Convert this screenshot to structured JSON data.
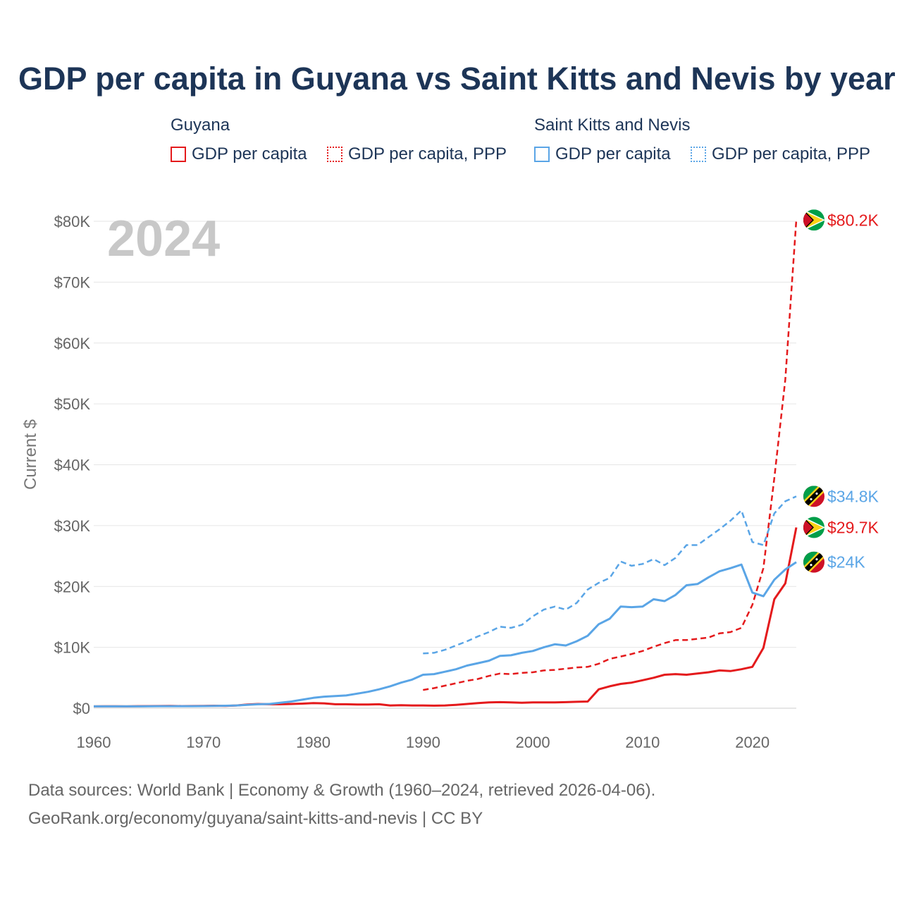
{
  "title": "GDP per capita in Guyana vs Saint Kitts and Nevis by year",
  "legend": {
    "groups": [
      {
        "country": "Guyana",
        "color": "#e41a1c",
        "items": [
          {
            "label": "GDP per capita",
            "style": "solid"
          },
          {
            "label": "GDP per capita, PPP",
            "style": "dashed"
          }
        ]
      },
      {
        "country": "Saint Kitts and Nevis",
        "color": "#5aa5e6",
        "items": [
          {
            "label": "GDP per capita",
            "style": "solid"
          },
          {
            "label": "GDP per capita, PPP",
            "style": "dashed"
          }
        ]
      }
    ]
  },
  "footer": {
    "line1": "Data sources: World Bank | Economy & Growth (1960–2024, retrieved 2026-04-06).",
    "line2": "GeoRank.org/economy/guyana/saint-kitts-and-nevis | CC BY"
  },
  "chart_data": {
    "type": "line",
    "title": "GDP per capita in Guyana vs Saint Kitts and Nevis by year",
    "year_label": "2024",
    "xlabel": "",
    "ylabel": "Current $",
    "xlim": [
      1960,
      2024
    ],
    "ylim": [
      0,
      80000
    ],
    "x_ticks": [
      "1960",
      "1970",
      "1980",
      "1990",
      "2000",
      "2010",
      "2020"
    ],
    "y_ticks": [
      "$0",
      "$10K",
      "$20K",
      "$30K",
      "$40K",
      "$50K",
      "$60K",
      "$70K",
      "$80K"
    ],
    "grid": true,
    "series": [
      {
        "name": "Guyana GDP per capita",
        "country": "Guyana",
        "color": "#e41a1c",
        "dashed": false,
        "end_label": "$29.7K",
        "x": [
          1960,
          1961,
          1962,
          1963,
          1964,
          1965,
          1966,
          1967,
          1968,
          1969,
          1970,
          1971,
          1972,
          1973,
          1974,
          1975,
          1976,
          1977,
          1978,
          1979,
          1980,
          1981,
          1982,
          1983,
          1984,
          1985,
          1986,
          1987,
          1988,
          1989,
          1990,
          1991,
          1992,
          1993,
          1994,
          1995,
          1996,
          1997,
          1998,
          1999,
          2000,
          2001,
          2002,
          2003,
          2004,
          2005,
          2006,
          2007,
          2008,
          2009,
          2010,
          2011,
          2012,
          2013,
          2014,
          2015,
          2016,
          2017,
          2018,
          2019,
          2020,
          2021,
          2022,
          2023,
          2024
        ],
        "y": [
          300,
          310,
          320,
          300,
          330,
          350,
          360,
          380,
          350,
          360,
          380,
          400,
          380,
          450,
          600,
          700,
          650,
          650,
          700,
          750,
          850,
          800,
          650,
          650,
          600,
          600,
          650,
          450,
          500,
          450,
          450,
          420,
          450,
          550,
          700,
          850,
          950,
          1000,
          950,
          900,
          950,
          950,
          950,
          1000,
          1050,
          1100,
          3100,
          3600,
          4000,
          4200,
          4600,
          5000,
          5500,
          5600,
          5500,
          5700,
          5900,
          6200,
          6100,
          6400,
          6800,
          9900,
          17900,
          20500,
          29700
        ]
      },
      {
        "name": "Guyana GDP per capita, PPP",
        "country": "Guyana",
        "color": "#e41a1c",
        "dashed": true,
        "end_label": "$80.2K",
        "x": [
          1990,
          1991,
          1992,
          1993,
          1994,
          1995,
          1996,
          1997,
          1998,
          1999,
          2000,
          2001,
          2002,
          2003,
          2004,
          2005,
          2006,
          2007,
          2008,
          2009,
          2010,
          2011,
          2012,
          2013,
          2014,
          2015,
          2016,
          2017,
          2018,
          2019,
          2020,
          2021,
          2022,
          2023,
          2024
        ],
        "y": [
          3000,
          3300,
          3700,
          4100,
          4500,
          4800,
          5300,
          5700,
          5600,
          5800,
          5900,
          6200,
          6300,
          6500,
          6700,
          6800,
          7300,
          8100,
          8500,
          8900,
          9400,
          10100,
          10700,
          11200,
          11200,
          11400,
          11600,
          12300,
          12500,
          13200,
          17000,
          23000,
          37800,
          54000,
          80200
        ]
      },
      {
        "name": "Saint Kitts and Nevis GDP per capita",
        "country": "Saint Kitts and Nevis",
        "color": "#5aa5e6",
        "dashed": false,
        "end_label": "$24K",
        "x": [
          1960,
          1961,
          1962,
          1963,
          1964,
          1965,
          1966,
          1967,
          1968,
          1969,
          1970,
          1971,
          1972,
          1973,
          1974,
          1975,
          1976,
          1977,
          1978,
          1979,
          1980,
          1981,
          1982,
          1983,
          1984,
          1985,
          1986,
          1987,
          1988,
          1989,
          1990,
          1991,
          1992,
          1993,
          1994,
          1995,
          1996,
          1997,
          1998,
          1999,
          2000,
          2001,
          2002,
          2003,
          2004,
          2005,
          2006,
          2007,
          2008,
          2009,
          2010,
          2011,
          2012,
          2013,
          2014,
          2015,
          2016,
          2017,
          2018,
          2019,
          2020,
          2021,
          2022,
          2023,
          2024
        ],
        "y": [
          300,
          300,
          300,
          300,
          300,
          320,
          330,
          340,
          330,
          340,
          350,
          380,
          400,
          450,
          550,
          650,
          700,
          900,
          1100,
          1400,
          1700,
          1900,
          2000,
          2100,
          2400,
          2700,
          3100,
          3600,
          4200,
          4700,
          5500,
          5600,
          6000,
          6400,
          7000,
          7400,
          7800,
          8600,
          8700,
          9100,
          9400,
          10000,
          10500,
          10300,
          11000,
          11900,
          13800,
          14700,
          16700,
          16600,
          16700,
          17900,
          17600,
          18600,
          20200,
          20400,
          21500,
          22500,
          23000,
          23600,
          19000,
          18400,
          21100,
          22800,
          24000
        ]
      },
      {
        "name": "Saint Kitts and Nevis GDP per capita, PPP",
        "country": "Saint Kitts and Nevis",
        "color": "#5aa5e6",
        "dashed": true,
        "end_label": "$34.8K",
        "x": [
          1990,
          1991,
          1992,
          1993,
          1994,
          1995,
          1996,
          1997,
          1998,
          1999,
          2000,
          2001,
          2002,
          2003,
          2004,
          2005,
          2006,
          2007,
          2008,
          2009,
          2010,
          2011,
          2012,
          2013,
          2014,
          2015,
          2016,
          2017,
          2018,
          2019,
          2020,
          2021,
          2022,
          2023,
          2024
        ],
        "y": [
          9000,
          9100,
          9600,
          10300,
          11000,
          11800,
          12500,
          13400,
          13200,
          13700,
          15100,
          16200,
          16700,
          16200,
          17300,
          19500,
          20600,
          21400,
          24100,
          23400,
          23700,
          24500,
          23500,
          24700,
          26800,
          26800,
          28100,
          29400,
          30800,
          32500,
          27300,
          26800,
          32000,
          34000,
          34800
        ]
      }
    ]
  }
}
